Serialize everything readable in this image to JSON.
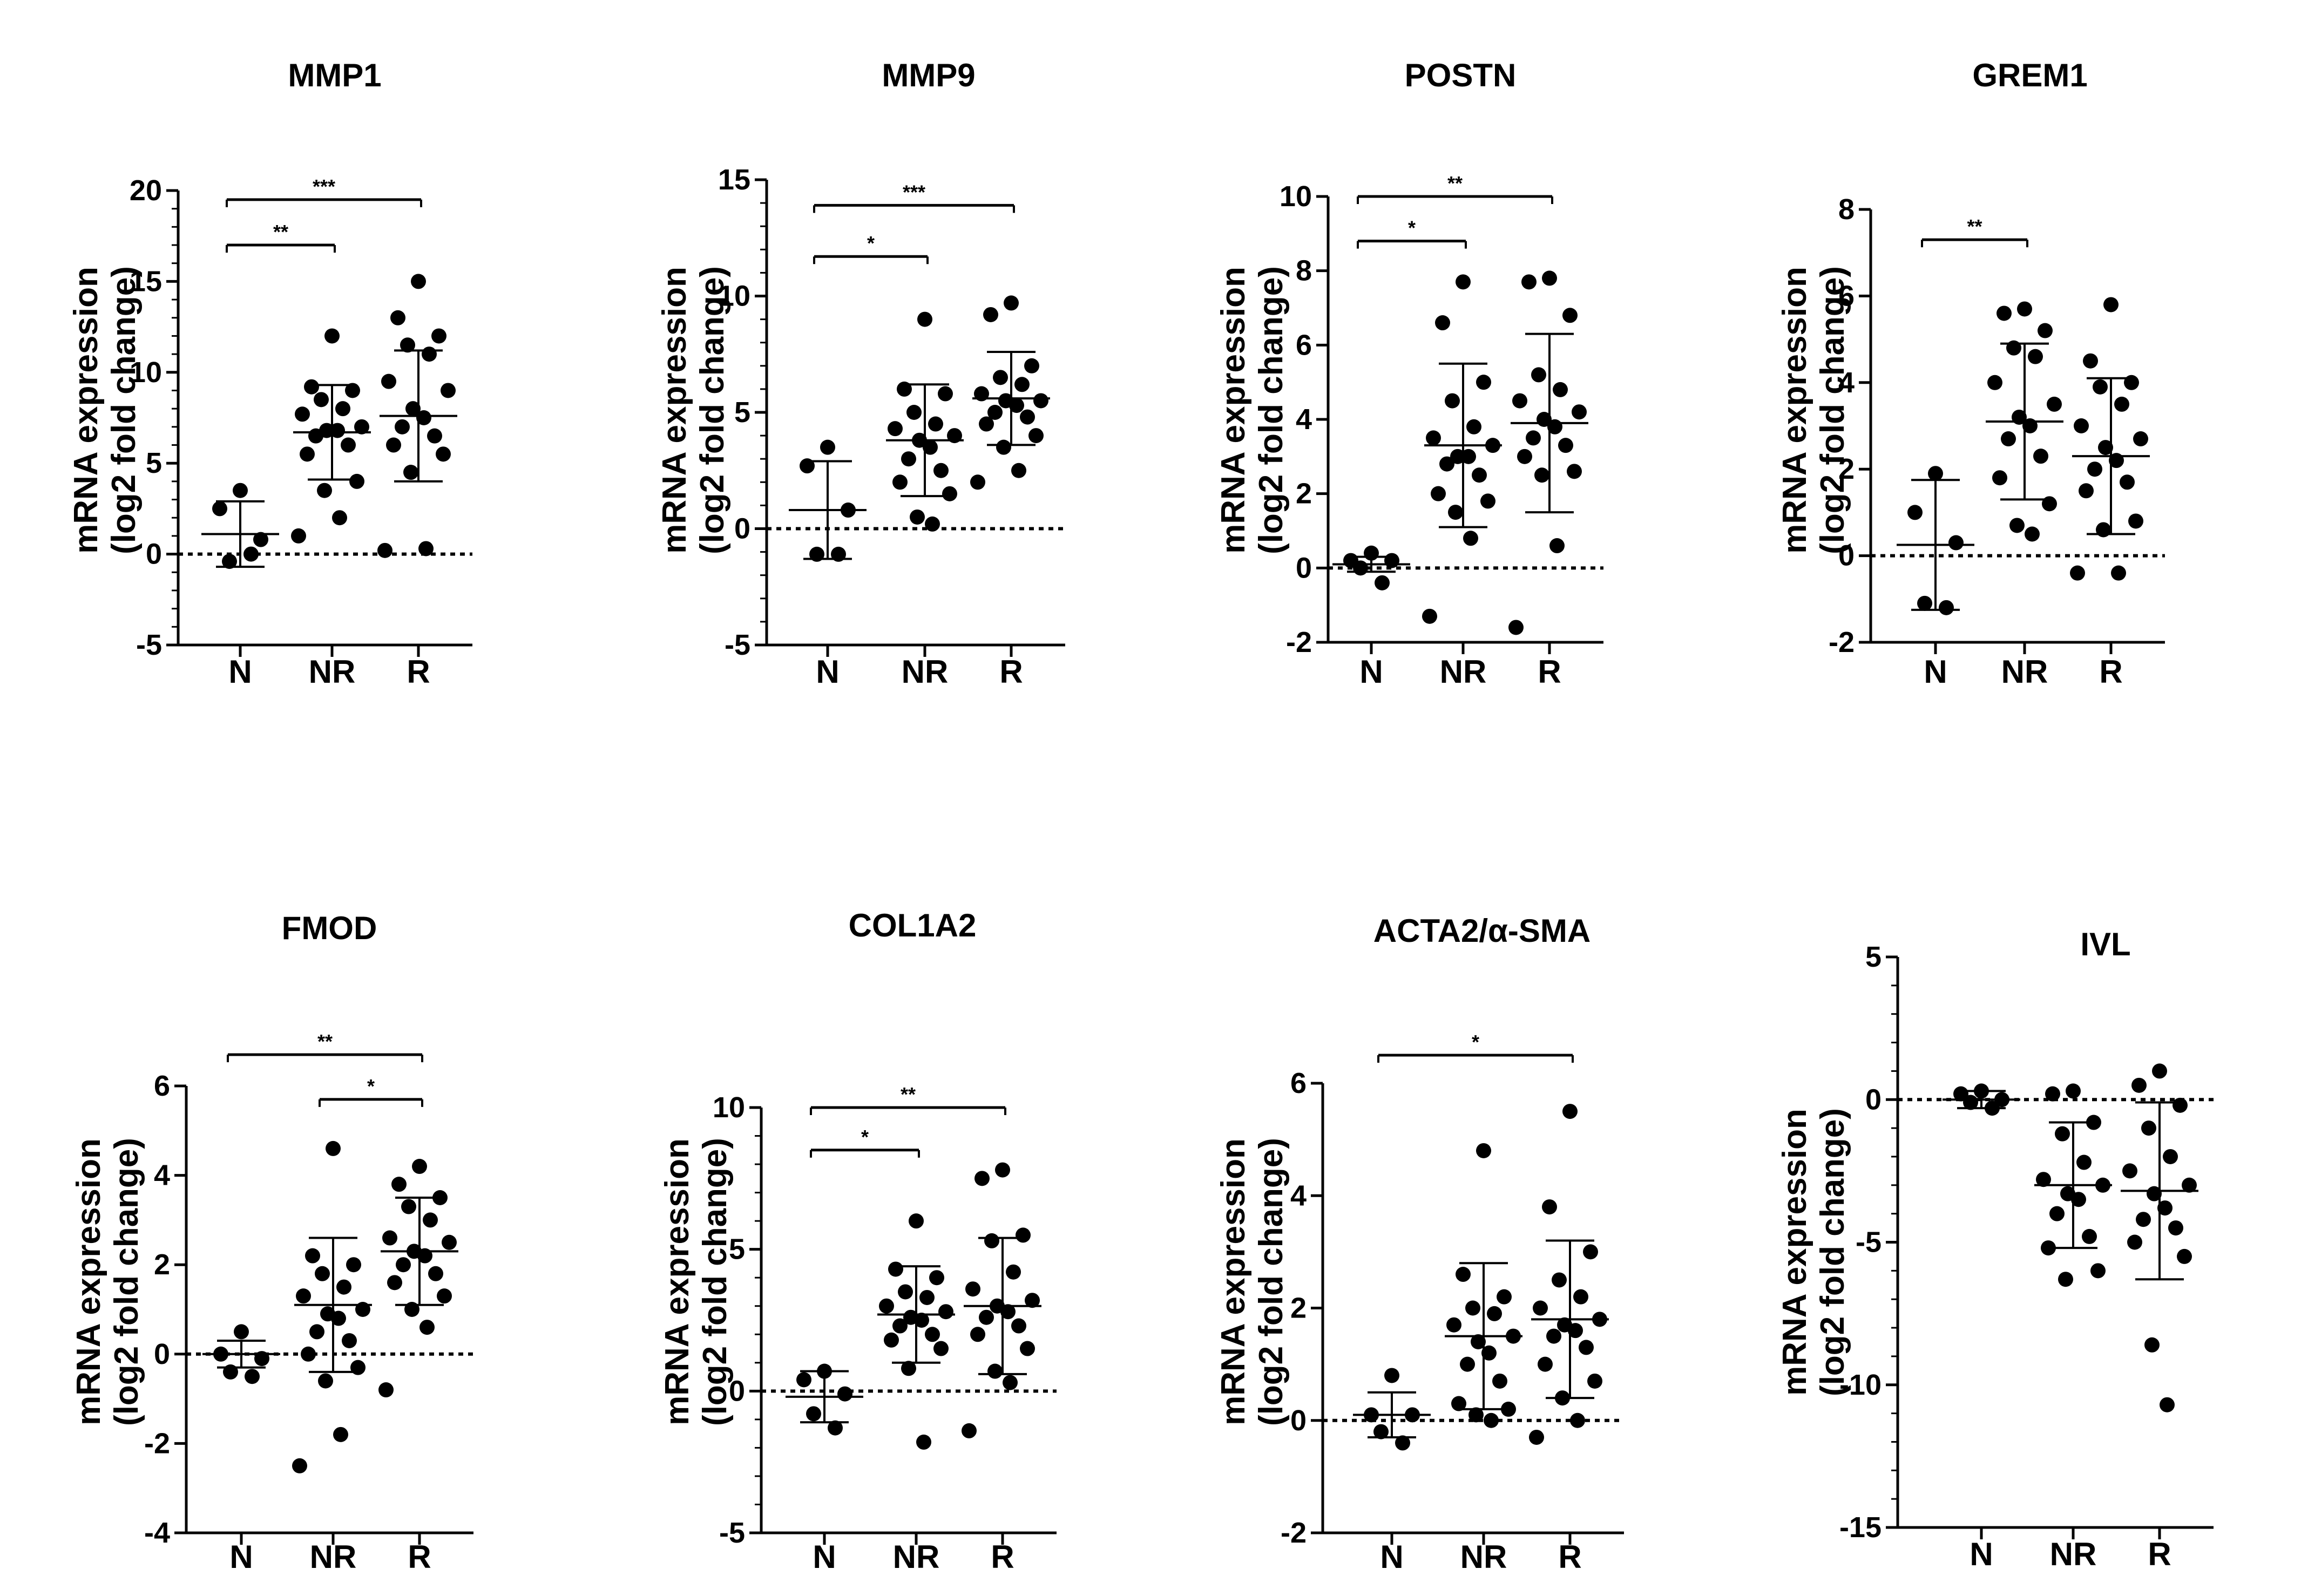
{
  "figure_title": "",
  "chart_data": [
    {
      "type": "scatter",
      "title": "MMP1",
      "ylabel": [
        "mRNA expression",
        "(log2 fold change)"
      ],
      "ylim": [
        -5,
        20
      ],
      "yticks": [
        -5,
        0,
        5,
        10,
        15,
        20
      ],
      "yticklabels": [
        "-5",
        "0",
        "5",
        "10",
        "15",
        "20"
      ],
      "minor_per_major": 4,
      "categories": [
        "N",
        "NR",
        "R"
      ],
      "points": [
        [
          3.5,
          2.5,
          0.8,
          -0.4,
          0.0
        ],
        [
          12.0,
          9.2,
          9.0,
          8.5,
          8.0,
          7.7,
          7.0,
          6.8,
          6.8,
          6.5,
          6.0,
          5.5,
          4.0,
          3.5,
          2.0,
          1.0
        ],
        [
          15.0,
          13.0,
          12.0,
          11.5,
          11.0,
          9.5,
          9.0,
          8.0,
          7.5,
          7.0,
          6.5,
          6.0,
          5.5,
          4.5,
          0.3,
          0.2
        ]
      ],
      "mean": [
        1.1,
        6.7,
        7.6
      ],
      "sd": [
        1.8,
        2.6,
        3.6
      ],
      "significance": [
        {
          "from": 0,
          "to": 1,
          "label": "**",
          "y": 17
        },
        {
          "from": 0,
          "to": 2,
          "label": "***",
          "y": 19.5
        }
      ]
    },
    {
      "type": "scatter",
      "title": "MMP9",
      "ylabel": [
        "mRNA expression",
        "(log2 fold change)"
      ],
      "ylim": [
        -5,
        15
      ],
      "yticks": [
        -5,
        0,
        5,
        10,
        15
      ],
      "yticklabels": [
        "-5",
        "0",
        "5",
        "10",
        "15"
      ],
      "minor_per_major": 4,
      "categories": [
        "N",
        "NR",
        "R"
      ],
      "points": [
        [
          3.5,
          2.7,
          0.8,
          -1.1,
          -1.1
        ],
        [
          9.0,
          6.0,
          5.8,
          5.0,
          4.5,
          4.3,
          4.0,
          3.8,
          3.5,
          3.0,
          2.5,
          2.0,
          1.5,
          0.5,
          0.2
        ],
        [
          9.7,
          9.2,
          7.0,
          6.5,
          6.2,
          5.8,
          5.5,
          5.5,
          5.3,
          5.0,
          4.8,
          4.5,
          4.0,
          3.5,
          2.5,
          2.0
        ]
      ],
      "mean": [
        0.8,
        3.8,
        5.6
      ],
      "sd": [
        2.1,
        2.4,
        2.0
      ],
      "significance": [
        {
          "from": 0,
          "to": 1,
          "label": "*",
          "y": 11.7
        },
        {
          "from": 0,
          "to": 2,
          "label": "***",
          "y": 13.9
        }
      ]
    },
    {
      "type": "scatter",
      "title": "POSTN",
      "ylabel": [
        "mRNA expression",
        "(log2 fold change)"
      ],
      "ylim": [
        -2,
        10
      ],
      "yticks": [
        -2,
        0,
        2,
        4,
        6,
        8,
        10
      ],
      "yticklabels": [
        "-2",
        "0",
        "2",
        "4",
        "6",
        "8",
        "10"
      ],
      "minor_per_major": 1,
      "categories": [
        "N",
        "NR",
        "R"
      ],
      "points": [
        [
          0.4,
          0.2,
          0.2,
          0.0,
          -0.4
        ],
        [
          7.7,
          6.6,
          5.0,
          4.5,
          3.8,
          3.5,
          3.3,
          3.0,
          3.0,
          2.8,
          2.5,
          2.0,
          1.8,
          1.5,
          0.8,
          -1.3
        ],
        [
          7.8,
          7.7,
          6.8,
          5.2,
          4.8,
          4.5,
          4.2,
          4.0,
          3.8,
          3.5,
          3.3,
          3.0,
          2.6,
          2.5,
          0.6,
          -1.6
        ]
      ],
      "mean": [
        0.1,
        3.3,
        3.9
      ],
      "sd": [
        0.2,
        2.2,
        2.4
      ],
      "significance": [
        {
          "from": 0,
          "to": 1,
          "label": "*",
          "y": 8.8
        },
        {
          "from": 0,
          "to": 2,
          "label": "**",
          "y": 10.0
        }
      ]
    },
    {
      "type": "scatter",
      "title": "GREM1",
      "ylabel": [
        "mRNA expression",
        "(log2 fold change)"
      ],
      "ylim": [
        -2,
        8
      ],
      "yticks": [
        -2,
        0,
        2,
        4,
        6,
        8
      ],
      "yticklabels": [
        "-2",
        "0",
        "2",
        "4",
        "6",
        "8"
      ],
      "minor_per_major": 1,
      "categories": [
        "N",
        "NR",
        "R"
      ],
      "points": [
        [
          1.9,
          1.0,
          0.3,
          -1.1,
          -1.2
        ],
        [
          5.7,
          5.6,
          5.2,
          4.8,
          4.6,
          4.0,
          3.5,
          3.2,
          3.0,
          2.7,
          2.3,
          1.8,
          1.2,
          0.7,
          0.5
        ],
        [
          5.8,
          4.5,
          4.0,
          3.9,
          3.5,
          3.0,
          2.7,
          2.5,
          2.2,
          2.0,
          1.7,
          1.5,
          0.8,
          0.6,
          -0.4,
          -0.4
        ]
      ],
      "mean": [
        0.25,
        3.1,
        2.3
      ],
      "sd": [
        1.5,
        1.8,
        1.8
      ],
      "significance": [
        {
          "from": 0,
          "to": 1,
          "label": "**",
          "y": 7.3
        }
      ]
    },
    {
      "type": "scatter",
      "title": "FMOD",
      "ylabel": [
        "mRNA expression",
        "(log2 fold change)"
      ],
      "ylim": [
        -4,
        6
      ],
      "yticks": [
        -4,
        -2,
        0,
        2,
        4,
        6
      ],
      "yticklabels": [
        "-4",
        "-2",
        "0",
        "2",
        "4",
        "6"
      ],
      "minor_per_major": 1,
      "categories": [
        "N",
        "NR",
        "R"
      ],
      "points": [
        [
          0.5,
          0.0,
          -0.1,
          -0.4,
          -0.5
        ],
        [
          4.6,
          2.2,
          2.0,
          1.8,
          1.5,
          1.3,
          1.0,
          0.9,
          0.8,
          0.5,
          0.3,
          0.0,
          -0.3,
          -0.6,
          -1.8,
          -2.5
        ],
        [
          4.2,
          3.8,
          3.5,
          3.3,
          3.0,
          2.6,
          2.5,
          2.3,
          2.2,
          2.0,
          1.8,
          1.6,
          1.3,
          1.0,
          0.6,
          -0.8
        ]
      ],
      "mean": [
        0.0,
        1.1,
        2.3
      ],
      "sd": [
        0.3,
        1.5,
        1.2
      ],
      "significance": [
        {
          "from": 1,
          "to": 2,
          "label": "*",
          "y": 5.7
        },
        {
          "from": 0,
          "to": 2,
          "label": "**",
          "y": 6.7
        }
      ]
    },
    {
      "type": "scatter",
      "title": "COL1A2",
      "ylabel": [
        "mRNA expression",
        "(log2 fold change)"
      ],
      "ylim": [
        -5,
        10
      ],
      "yticks": [
        -5,
        0,
        5,
        10
      ],
      "yticklabels": [
        "-5",
        "0",
        "5",
        "10"
      ],
      "minor_per_major": 4,
      "categories": [
        "N",
        "NR",
        "R"
      ],
      "points": [
        [
          0.7,
          0.4,
          -0.1,
          -0.8,
          -1.3
        ],
        [
          6.0,
          4.3,
          4.0,
          3.5,
          3.3,
          3.0,
          2.8,
          2.6,
          2.5,
          2.3,
          2.0,
          1.8,
          1.5,
          0.8,
          -1.8
        ],
        [
          7.8,
          7.5,
          5.5,
          5.3,
          4.2,
          3.6,
          3.2,
          3.0,
          2.8,
          2.6,
          2.3,
          2.0,
          1.5,
          0.7,
          0.3,
          -1.4
        ]
      ],
      "mean": [
        -0.2,
        2.7,
        3.0
      ],
      "sd": [
        0.9,
        1.7,
        2.4
      ],
      "significance": [
        {
          "from": 0,
          "to": 1,
          "label": "*",
          "y": 8.5
        },
        {
          "from": 0,
          "to": 2,
          "label": "**",
          "y": 10.0
        }
      ]
    },
    {
      "type": "scatter",
      "title": "ACTA2/α-SMA",
      "ylabel": [
        "mRNA expression",
        "(log2 fold change)"
      ],
      "ylim": [
        -2,
        6
      ],
      "yticks": [
        -2,
        0,
        2,
        4,
        6
      ],
      "yticklabels": [
        "-2",
        "0",
        "2",
        "4",
        "6"
      ],
      "minor_per_major": 1,
      "categories": [
        "N",
        "NR",
        "R"
      ],
      "points": [
        [
          0.8,
          0.1,
          0.1,
          -0.2,
          -0.4
        ],
        [
          4.8,
          2.6,
          2.2,
          2.0,
          1.9,
          1.7,
          1.5,
          1.4,
          1.2,
          1.0,
          0.7,
          0.3,
          0.2,
          0.1,
          0.0
        ],
        [
          5.5,
          3.8,
          3.0,
          2.5,
          2.2,
          2.0,
          1.8,
          1.7,
          1.6,
          1.5,
          1.3,
          1.0,
          0.7,
          0.4,
          0.0,
          -0.3
        ]
      ],
      "mean": [
        0.1,
        1.5,
        1.8
      ],
      "sd": [
        0.4,
        1.3,
        1.4
      ],
      "significance": [
        {
          "from": 0,
          "to": 2,
          "label": "*",
          "y": 6.5
        }
      ]
    },
    {
      "type": "scatter",
      "title": "IVL",
      "ylabel": [
        "mRNA expression",
        "(log2 fold change)"
      ],
      "ylim": [
        -15,
        5
      ],
      "yticks": [
        -15,
        -10,
        -5,
        0,
        5
      ],
      "yticklabels": [
        "-15",
        "-10",
        "-5",
        "0",
        "5"
      ],
      "minor_per_major": 4,
      "categories": [
        "N",
        "NR",
        "R"
      ],
      "points": [
        [
          0.3,
          0.2,
          0.0,
          -0.1,
          -0.3
        ],
        [
          0.3,
          0.2,
          -0.8,
          -1.2,
          -2.2,
          -2.8,
          -3.0,
          -3.3,
          -3.5,
          -4.0,
          -4.8,
          -5.2,
          -6.0,
          -6.3
        ],
        [
          1.0,
          0.5,
          -0.2,
          -1.0,
          -2.0,
          -2.5,
          -3.0,
          -3.3,
          -3.8,
          -4.2,
          -4.5,
          -5.0,
          -5.5,
          -8.6,
          -10.7
        ]
      ],
      "mean": [
        0.0,
        -3.0,
        -3.2
      ],
      "sd": [
        0.3,
        2.2,
        3.1
      ],
      "significance": []
    }
  ]
}
